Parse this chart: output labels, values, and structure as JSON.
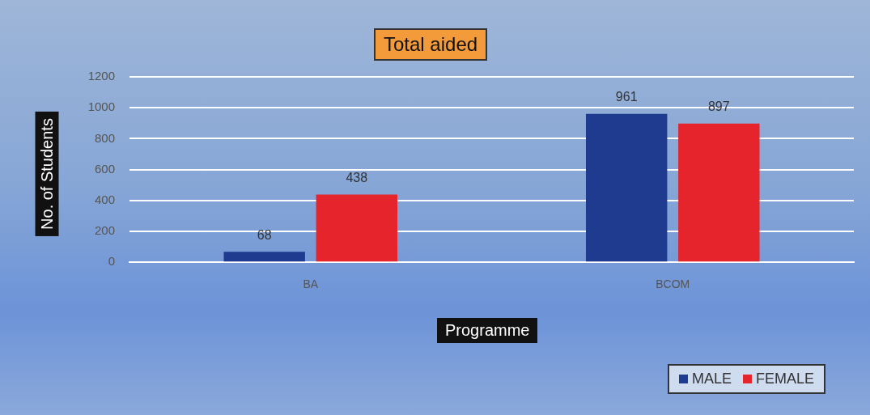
{
  "chart_data": {
    "type": "bar",
    "title": "Total aided",
    "xlabel": "Programme",
    "ylabel": "No. of Students",
    "categories": [
      "BA",
      "BCOM"
    ],
    "series": [
      {
        "name": "MALE",
        "color": "#1f3b8f",
        "values": [
          68,
          961
        ]
      },
      {
        "name": "FEMALE",
        "color": "#e5242b",
        "values": [
          438,
          897
        ]
      }
    ],
    "ylim": [
      0,
      1200
    ],
    "yticks": [
      0,
      200,
      400,
      600,
      800,
      1000,
      1200
    ],
    "grid": "y",
    "legend": "bottom right",
    "data_labels": true
  }
}
